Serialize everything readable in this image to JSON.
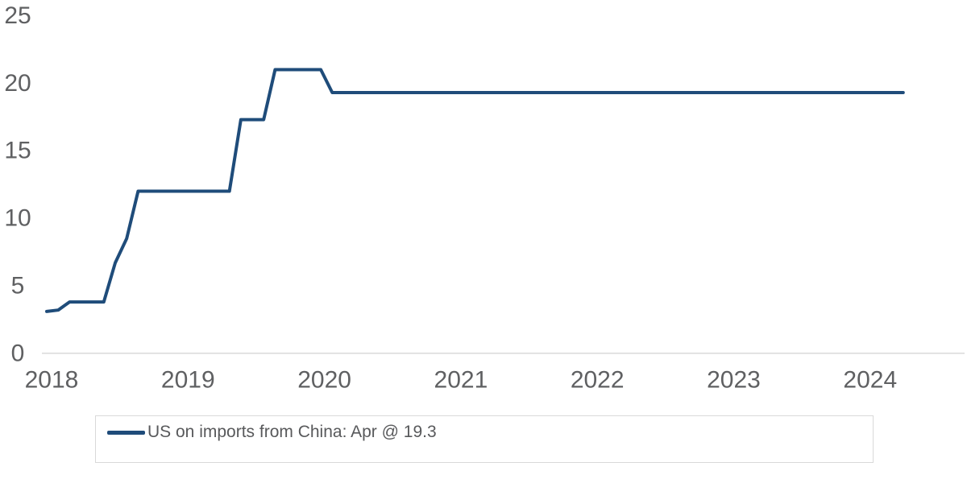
{
  "colors": {
    "line": "#1F4C7A",
    "axis_text": "#5F6062",
    "zero_gridline": "#D9D9D9",
    "legend_border": "#D9D9D9",
    "legend_text": "#58595B"
  },
  "legend": {
    "entries": [
      {
        "label": "US on imports from China: Apr @ 19.3",
        "swatch": "line-swatch"
      }
    ],
    "position": "bottom-left"
  },
  "chart_data": {
    "type": "line",
    "title": "",
    "xlabel": "",
    "ylabel": "",
    "frequency": "monthly",
    "start": "2018-01",
    "end": "2024-04",
    "x_tick_labels": [
      "2018",
      "2019",
      "2020",
      "2021",
      "2022",
      "2023",
      "2024"
    ],
    "y_ticks": [
      0,
      5,
      10,
      15,
      20,
      25
    ],
    "ylim": [
      0,
      25
    ],
    "grid": "zero-baseline-only",
    "legend_position": "bottom",
    "series": [
      {
        "name": "US on imports from China: Apr @ 19.3",
        "color": "#1F4C7A",
        "last_point_label": "Apr @ 19.3",
        "values": [
          3.1,
          3.2,
          3.8,
          3.8,
          3.8,
          3.8,
          6.7,
          8.5,
          12.0,
          12.0,
          12.0,
          12.0,
          12.0,
          12.0,
          12.0,
          12.0,
          12.0,
          17.3,
          17.3,
          17.3,
          21.0,
          21.0,
          21.0,
          21.0,
          21.0,
          19.3,
          19.3,
          19.3,
          19.3,
          19.3,
          19.3,
          19.3,
          19.3,
          19.3,
          19.3,
          19.3,
          19.3,
          19.3,
          19.3,
          19.3,
          19.3,
          19.3,
          19.3,
          19.3,
          19.3,
          19.3,
          19.3,
          19.3,
          19.3,
          19.3,
          19.3,
          19.3,
          19.3,
          19.3,
          19.3,
          19.3,
          19.3,
          19.3,
          19.3,
          19.3,
          19.3,
          19.3,
          19.3,
          19.3,
          19.3,
          19.3,
          19.3,
          19.3,
          19.3,
          19.3,
          19.3,
          19.3,
          19.3,
          19.3,
          19.3,
          19.3
        ]
      }
    ]
  }
}
